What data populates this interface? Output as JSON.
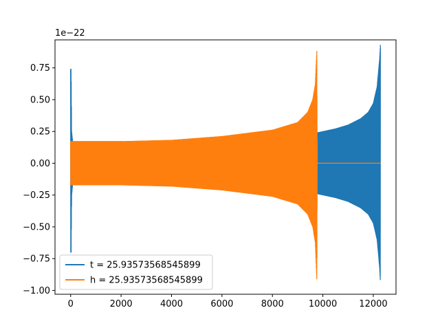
{
  "chart_data": {
    "type": "line",
    "title": "",
    "xlabel": "",
    "ylabel": "",
    "xlim": [
      -620,
      12900
    ],
    "ylim": [
      -1.03,
      0.97
    ],
    "y_offset_label": "1e−22",
    "xticks": [
      0,
      2000,
      4000,
      6000,
      8000,
      10000,
      12000
    ],
    "xtick_labels": [
      "0",
      "2000",
      "4000",
      "6000",
      "8000",
      "10000",
      "12000"
    ],
    "yticks": [
      -1.0,
      -0.75,
      -0.5,
      -0.25,
      0.0,
      0.25,
      0.5,
      0.75
    ],
    "ytick_labels": [
      "−1.00",
      "−0.75",
      "−0.50",
      "−0.25",
      "0.00",
      "0.25",
      "0.50",
      "0.75"
    ],
    "grid": false,
    "legend_position": "lower left",
    "series": [
      {
        "name": "t = 25.93573568545899",
        "color": "#1f77b4",
        "x": [
          0,
          20,
          40,
          80,
          2000,
          4000,
          6000,
          8000,
          9800,
          10500,
          11000,
          11500,
          11800,
          12000,
          12150,
          12250,
          12280
        ],
        "envelope": [
          0.74,
          0.74,
          0.25,
          0.17,
          0.17,
          0.16,
          0.17,
          0.19,
          0.24,
          0.27,
          0.3,
          0.35,
          0.4,
          0.47,
          0.6,
          0.82,
          0.93
        ],
        "envelope_neg": [
          -0.7,
          -0.7,
          -0.25,
          -0.17,
          -0.17,
          -0.16,
          -0.17,
          -0.19,
          -0.24,
          -0.27,
          -0.3,
          -0.35,
          -0.4,
          -0.47,
          -0.6,
          -0.82,
          -0.93
        ]
      },
      {
        "name": "h = 25.93573568545899",
        "color": "#ff7f0e",
        "x": [
          0,
          80,
          2000,
          4000,
          6000,
          8000,
          9000,
          9400,
          9600,
          9700,
          9760,
          9780,
          12300
        ],
        "envelope": [
          0.17,
          0.17,
          0.17,
          0.18,
          0.21,
          0.26,
          0.32,
          0.4,
          0.5,
          0.62,
          0.88,
          0.0,
          0.0
        ],
        "envelope_neg": [
          -0.17,
          -0.17,
          -0.17,
          -0.18,
          -0.21,
          -0.26,
          -0.32,
          -0.4,
          -0.5,
          -0.62,
          -0.93,
          0.0,
          0.0
        ]
      }
    ]
  }
}
